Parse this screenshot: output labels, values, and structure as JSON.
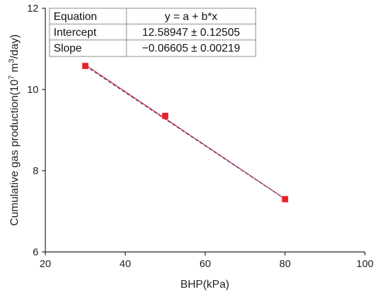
{
  "chart_data": {
    "type": "scatter",
    "xlabel": "BHP(kPa)",
    "ylabel_main": "Cumulative gas production(10",
    "ylabel_exp1": "7",
    "ylabel_mid": " m",
    "ylabel_exp2": "3",
    "ylabel_end": "/day)",
    "xlim": [
      20,
      100
    ],
    "ylim": [
      6,
      12
    ],
    "xticks": [
      "20",
      "40",
      "60",
      "80",
      "100"
    ],
    "yticks": [
      "6",
      "8",
      "10",
      "12"
    ],
    "grid": false,
    "series": [
      {
        "x": [
          30,
          50,
          80
        ],
        "y": [
          10.58,
          9.35,
          7.3
        ],
        "color": "#e8202a"
      }
    ],
    "fit": {
      "intercept": 12.58947,
      "slope": -0.06605,
      "x_range": [
        30,
        80
      ],
      "fit_color": "#e8202a",
      "trend_color": "#3a4fa8"
    },
    "fit_table": {
      "rows": [
        [
          "Equation",
          "y = a + b*x"
        ],
        [
          "Intercept",
          "12.58947 ± 0.12505"
        ],
        [
          "Slope",
          "−0.06605 ± 0.00219"
        ]
      ]
    }
  }
}
